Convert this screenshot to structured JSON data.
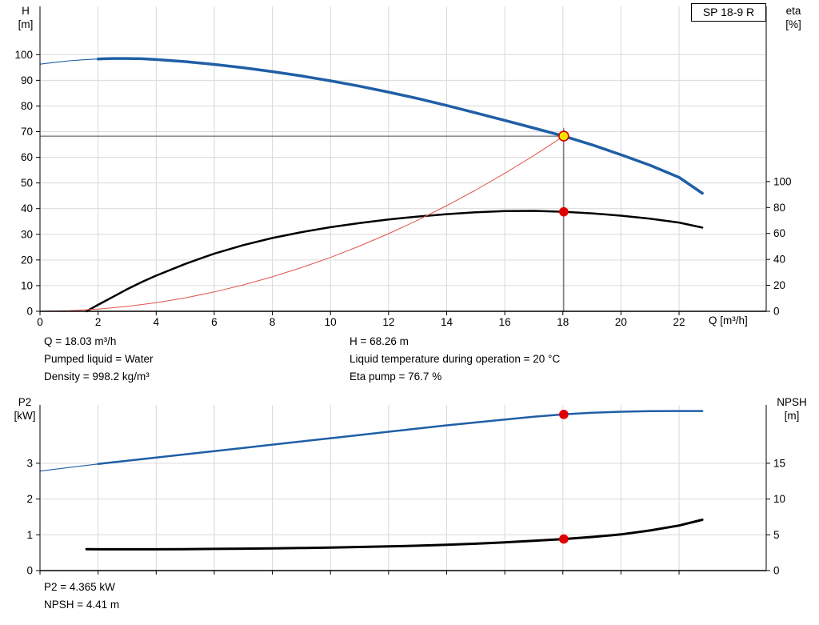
{
  "pump_box": {
    "label": "SP 18-9 R"
  },
  "axis_labels": {
    "top_left_line1": "H",
    "top_left_line2": "[m]",
    "top_right_line1": "eta",
    "top_right_line2": "[%]",
    "x_label": "Q [m³/h]",
    "bottom_left_line1": "P2",
    "bottom_left_line2": "[kW]",
    "bottom_right_line1": "NPSH",
    "bottom_right_line2": "[m]"
  },
  "annotations": {
    "q": "Q = 18.03 m³/h",
    "pumped_liquid": "Pumped liquid = Water",
    "density": "Density = 998.2 kg/m³",
    "h": "H = 68.26 m",
    "liquid_temp": "Liquid temperature during operation = 20 °C",
    "eta_pump": "Eta pump = 76.7 %",
    "p2": "P2 = 4.365 kW",
    "npsh": "NPSH = 4.41 m"
  },
  "colors": {
    "curve_blue": "#1f5fa6",
    "curve_black": "#000000",
    "system_curve_red": "#e0544a",
    "marker_red": "#e00000",
    "marker_yellow": "#ffe000",
    "grid": "#d9d9d9",
    "guide": "#4a4a4a",
    "axis": "#000000"
  },
  "chart_data": [
    {
      "type": "line",
      "name": "qh-efficiency-chart",
      "title": "SP 18-9 R pump curve",
      "x": {
        "min": 0,
        "max": 25,
        "ticks": [
          0,
          2,
          4,
          6,
          8,
          10,
          12,
          14,
          16,
          18,
          20,
          22
        ],
        "show_labels": true,
        "label": "Q [m³/h]"
      },
      "y_left": {
        "min": 0,
        "max": 118.8,
        "ticks": [
          0,
          10,
          20,
          30,
          40,
          50,
          60,
          70,
          80,
          90,
          100
        ],
        "label": "H [m]"
      },
      "y_right": {
        "min": 0,
        "max": 235,
        "ticks": [
          0,
          20,
          40,
          60,
          80,
          100
        ],
        "label": "eta [%]"
      },
      "grid": true,
      "series": [
        {
          "name": "head-curve",
          "axis": "left",
          "color": "#1f5fa6",
          "width": 3.5,
          "thin_until": 1.8,
          "points": [
            [
              0,
              96.3
            ],
            [
              0.5,
              97.0
            ],
            [
              1,
              97.6
            ],
            [
              1.5,
              98.0
            ],
            [
              2,
              98.3
            ],
            [
              2.5,
              98.5
            ],
            [
              3,
              98.5
            ],
            [
              3.5,
              98.4
            ],
            [
              4,
              98.1
            ],
            [
              5,
              97.3
            ],
            [
              6,
              96.2
            ],
            [
              7,
              94.9
            ],
            [
              8,
              93.4
            ],
            [
              9,
              91.7
            ],
            [
              10,
              89.8
            ],
            [
              11,
              87.7
            ],
            [
              12,
              85.4
            ],
            [
              13,
              82.9
            ],
            [
              14,
              80.2
            ],
            [
              15,
              77.3
            ],
            [
              16,
              74.4
            ],
            [
              17,
              71.4
            ],
            [
              18.03,
              68.26
            ],
            [
              19,
              64.9
            ],
            [
              20,
              61.0
            ],
            [
              21,
              56.9
            ],
            [
              22,
              52.2
            ],
            [
              22.8,
              46.0
            ]
          ]
        },
        {
          "name": "efficiency-curve",
          "axis": "right",
          "color": "#000000",
          "width": 2.5,
          "points": [
            [
              1.6,
              0
            ],
            [
              2,
              5
            ],
            [
              2.5,
              11
            ],
            [
              3,
              17
            ],
            [
              3.5,
              22.5
            ],
            [
              4,
              27.5
            ],
            [
              5,
              36.5
            ],
            [
              6,
              44.5
            ],
            [
              7,
              51
            ],
            [
              8,
              56.5
            ],
            [
              9,
              61
            ],
            [
              10,
              64.8
            ],
            [
              11,
              68
            ],
            [
              12,
              70.8
            ],
            [
              13,
              73
            ],
            [
              14,
              74.9
            ],
            [
              15,
              76.3
            ],
            [
              16,
              77.2
            ],
            [
              17,
              77.4
            ],
            [
              18.03,
              76.7
            ],
            [
              19,
              75.5
            ],
            [
              20,
              73.7
            ],
            [
              21,
              71.4
            ],
            [
              22,
              68.4
            ],
            [
              22.8,
              64.5
            ]
          ]
        },
        {
          "name": "duty-parabola",
          "axis": "left",
          "color": "#e0544a",
          "width": 1,
          "points": [
            [
              0,
              0
            ],
            [
              1,
              0.21
            ],
            [
              2,
              0.84
            ],
            [
              3,
              1.89
            ],
            [
              4,
              3.36
            ],
            [
              5,
              5.25
            ],
            [
              6,
              7.56
            ],
            [
              7,
              10.29
            ],
            [
              8,
              13.44
            ],
            [
              9,
              17.01
            ],
            [
              10,
              21.0
            ],
            [
              11,
              25.41
            ],
            [
              12,
              30.24
            ],
            [
              13,
              35.49
            ],
            [
              14,
              41.16
            ],
            [
              15,
              47.25
            ],
            [
              16,
              53.76
            ],
            [
              17,
              60.69
            ],
            [
              18.03,
              68.26
            ]
          ]
        }
      ],
      "guides": [
        {
          "type": "v",
          "axis": "left",
          "x": 18.03,
          "from": 0,
          "to": 71.5
        },
        {
          "type": "h",
          "axis": "left",
          "y": 68.26,
          "from": 0,
          "to": 18.03
        }
      ],
      "markers": [
        {
          "name": "duty-point-head",
          "x": 18.03,
          "value": 68.26,
          "axis": "left",
          "r": 6,
          "fill": "#ffe000",
          "stroke": "#d40000"
        },
        {
          "name": "duty-point-eta",
          "x": 18.03,
          "value": 76.7,
          "axis": "right",
          "r": 5,
          "fill": "#e00000",
          "stroke": "#e00000"
        }
      ]
    },
    {
      "type": "line",
      "name": "p2-npsh-chart",
      "title": "Power and NPSH curves",
      "x": {
        "min": 0,
        "max": 25,
        "ticks": [
          0,
          2,
          4,
          6,
          8,
          10,
          12,
          14,
          16,
          18,
          20,
          22
        ],
        "show_labels": false,
        "label": ""
      },
      "y_left": {
        "min": 0,
        "max": 4.63,
        "ticks": [
          0,
          1,
          2,
          3
        ],
        "label": "P2 [kW]"
      },
      "y_right": {
        "min": 0,
        "max": 23.15,
        "ticks": [
          0,
          5,
          10,
          15
        ],
        "label": "NPSH [m]"
      },
      "grid": true,
      "series": [
        {
          "name": "p2-curve",
          "axis": "left",
          "color": "#1f5fa6",
          "width": 2.5,
          "thin_until": 1.8,
          "points": [
            [
              0,
              2.78
            ],
            [
              1,
              2.88
            ],
            [
              2,
              2.98
            ],
            [
              3,
              3.07
            ],
            [
              4,
              3.16
            ],
            [
              5,
              3.25
            ],
            [
              6,
              3.34
            ],
            [
              7,
              3.43
            ],
            [
              8,
              3.52
            ],
            [
              9,
              3.61
            ],
            [
              10,
              3.7
            ],
            [
              11,
              3.79
            ],
            [
              12,
              3.88
            ],
            [
              13,
              3.97
            ],
            [
              14,
              4.06
            ],
            [
              15,
              4.14
            ],
            [
              16,
              4.22
            ],
            [
              17,
              4.3
            ],
            [
              18.03,
              4.365
            ],
            [
              19,
              4.41
            ],
            [
              20,
              4.44
            ],
            [
              21,
              4.455
            ],
            [
              22,
              4.46
            ],
            [
              22.8,
              4.46
            ]
          ]
        },
        {
          "name": "npsh-curve",
          "axis": "right",
          "color": "#000000",
          "width": 3,
          "points": [
            [
              1.6,
              3.0
            ],
            [
              2,
              2.98
            ],
            [
              3,
              2.97
            ],
            [
              4,
              2.98
            ],
            [
              5,
              3.0
            ],
            [
              6,
              3.03
            ],
            [
              7,
              3.06
            ],
            [
              8,
              3.1
            ],
            [
              9,
              3.15
            ],
            [
              10,
              3.22
            ],
            [
              11,
              3.3
            ],
            [
              12,
              3.38
            ],
            [
              13,
              3.48
            ],
            [
              14,
              3.6
            ],
            [
              15,
              3.76
            ],
            [
              16,
              3.95
            ],
            [
              17,
              4.17
            ],
            [
              18.03,
              4.41
            ],
            [
              19,
              4.7
            ],
            [
              20,
              5.05
            ],
            [
              21,
              5.6
            ],
            [
              22,
              6.3
            ],
            [
              22.8,
              7.1
            ]
          ]
        }
      ],
      "guides": [],
      "markers": [
        {
          "name": "duty-point-p2",
          "x": 18.03,
          "value": 4.365,
          "axis": "left",
          "r": 5,
          "fill": "#e00000",
          "stroke": "#e00000"
        },
        {
          "name": "duty-point-npsh",
          "x": 18.03,
          "value": 4.41,
          "axis": "right",
          "r": 5,
          "fill": "#e00000",
          "stroke": "#e00000"
        }
      ]
    }
  ]
}
